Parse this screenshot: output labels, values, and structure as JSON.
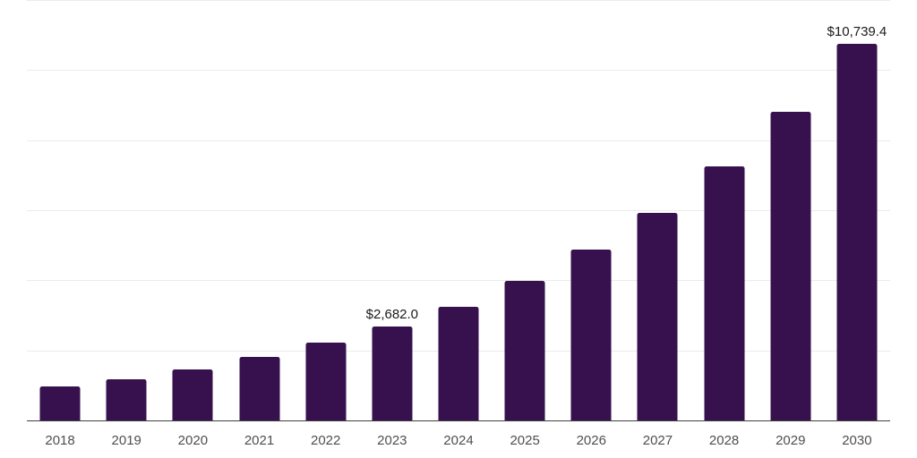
{
  "chart": {
    "background": "#ffffff",
    "bar_color": "#36114E",
    "grid_color": "#ebebeb",
    "axis_color": "#404040",
    "tick_color": "#4f4f4f",
    "label_color": "#1a1a1a"
  },
  "chart_data": {
    "type": "bar",
    "title": "",
    "xlabel": "",
    "ylabel": "",
    "categories": [
      "2018",
      "2019",
      "2020",
      "2021",
      "2022",
      "2023",
      "2024",
      "2025",
      "2026",
      "2027",
      "2028",
      "2029",
      "2030"
    ],
    "values": [
      965,
      1175,
      1455,
      1805,
      2215,
      2682.0,
      3250,
      3985,
      4870,
      5920,
      7250,
      8820,
      10739.4
    ],
    "data_labels": {
      "2023": "$2,682.0",
      "2030": "$10,739.4"
    },
    "ylim": [
      0,
      12000
    ],
    "gridline_step": 2000,
    "grid": "horizontal",
    "y_tick_labels_visible": false,
    "legend_position": "none"
  }
}
